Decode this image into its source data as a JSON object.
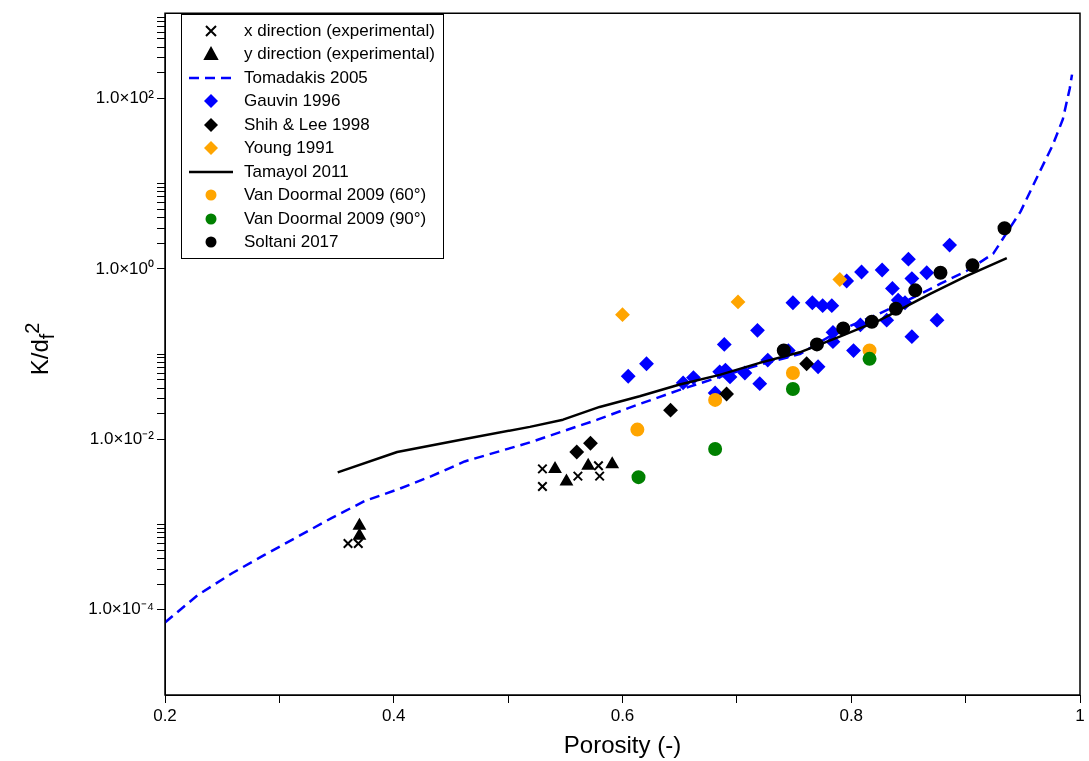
{
  "chart_data": {
    "type": "scatter",
    "xlabel": "Porosity (-)",
    "ylabel": "K/d$_{f}$$^{2}$",
    "log": "y",
    "grid": false,
    "legend": "top left",
    "xlim": [
      0.2,
      1
    ],
    "ylim": [
      1e-05,
      1000
    ],
    "xticks": [
      0.2,
      {
        "value": 0.3,
        "label": null
      },
      0.4,
      {
        "value": 0.5,
        "label": null
      },
      0.6,
      {
        "value": 0.7,
        "label": null
      },
      0.8,
      {
        "value": 0.9,
        "label": null
      },
      1
    ],
    "yticks": [
      {
        "value": 0.0001,
        "label": "1.0×10⁻⁴"
      },
      {
        "value": 0.0002,
        "label": null
      },
      {
        "value": 0.0003,
        "label": null
      },
      {
        "value": 0.0004,
        "label": null
      },
      {
        "value": 0.0005,
        "label": null
      },
      {
        "value": 0.0006,
        "label": null
      },
      {
        "value": 0.0007,
        "label": null
      },
      {
        "value": 0.0008,
        "label": null
      },
      {
        "value": 0.0009,
        "label": null
      },
      {
        "value": 0.001,
        "label": null
      },
      {
        "value": 0.01,
        "label": "1.0×10⁻²"
      },
      {
        "value": 0.02,
        "label": null
      },
      {
        "value": 0.03,
        "label": null
      },
      {
        "value": 0.04,
        "label": null
      },
      {
        "value": 0.05,
        "label": null
      },
      {
        "value": 0.06,
        "label": null
      },
      {
        "value": 0.07,
        "label": null
      },
      {
        "value": 0.08,
        "label": null
      },
      {
        "value": 0.09,
        "label": null
      },
      {
        "value": 0.1,
        "label": null
      },
      {
        "value": 1,
        "label": "1.0×10⁰"
      },
      {
        "value": 2,
        "label": null
      },
      {
        "value": 3,
        "label": null
      },
      {
        "value": 4,
        "label": null
      },
      {
        "value": 5,
        "label": null
      },
      {
        "value": 6,
        "label": null
      },
      {
        "value": 7,
        "label": null
      },
      {
        "value": 8,
        "label": null
      },
      {
        "value": 9,
        "label": null
      },
      {
        "value": 10,
        "label": null
      },
      {
        "value": 100,
        "label": "1.0×10²"
      },
      {
        "value": 200,
        "label": null
      },
      {
        "value": 300,
        "label": null
      },
      {
        "value": 400,
        "label": null
      },
      {
        "value": 500,
        "label": null
      },
      {
        "value": 600,
        "label": null
      },
      {
        "value": 700,
        "label": null
      },
      {
        "value": 800,
        "label": null
      },
      {
        "value": 900,
        "label": null
      }
    ],
    "series": [
      {
        "name": "x direction (experimental)",
        "type": "scatter",
        "color": "#000000",
        "marker": "cross",
        "x": [
          0.36,
          0.369,
          0.53,
          0.53,
          0.561,
          0.58,
          0.579
        ],
        "values": [
          0.0006,
          0.0006,
          0.0045,
          0.0028,
          0.0037,
          0.0037,
          0.0049
        ]
      },
      {
        "name": "y direction (experimental)",
        "type": "scatter",
        "color": "#000000",
        "marker": "triangle",
        "x": [
          0.37,
          0.37,
          0.541,
          0.551,
          0.57,
          0.591
        ],
        "values": [
          0.00097,
          0.00074,
          0.0045,
          0.0032,
          0.0049,
          0.0051
        ]
      },
      {
        "name": "Tomadakis 2005",
        "type": "line",
        "color": "#0000ff",
        "line_style": "dashed",
        "marker": "none",
        "x": [
          0.2,
          0.229,
          0.259,
          0.287,
          0.316,
          0.346,
          0.375,
          0.404,
          0.433,
          0.462,
          0.519,
          0.578,
          0.615,
          0.65,
          0.685,
          0.72,
          0.755,
          0.79,
          0.825,
          0.854,
          0.878,
          0.901,
          0.924,
          0.948,
          0.965,
          0.976,
          0.985,
          0.991,
          0.993
        ],
        "values": [
          7.1e-05,
          0.00015,
          0.00027,
          0.00044,
          0.00072,
          0.0012,
          0.0019,
          0.0026,
          0.0037,
          0.0055,
          0.0092,
          0.017,
          0.026,
          0.038,
          0.054,
          0.075,
          0.1,
          0.19,
          0.3,
          0.46,
          0.67,
          0.95,
          1.5,
          4.7,
          14,
          28,
          57,
          130,
          190
        ]
      },
      {
        "name": "Gauvin 1996",
        "type": "scatter",
        "color": "#0000ff",
        "marker": "diamond",
        "x": [
          0.605,
          0.621,
          0.653,
          0.662,
          0.681,
          0.685,
          0.69,
          0.694,
          0.689,
          0.707,
          0.72,
          0.718,
          0.727,
          0.745,
          0.749,
          0.766,
          0.771,
          0.775,
          0.783,
          0.784,
          0.784,
          0.796,
          0.802,
          0.808,
          0.809,
          0.827,
          0.831,
          0.836,
          0.841,
          0.847,
          0.85,
          0.853,
          0.853,
          0.866,
          0.875,
          0.886
        ],
        "values": [
          0.055,
          0.077,
          0.046,
          0.053,
          0.035,
          0.062,
          0.065,
          0.054,
          0.13,
          0.06,
          0.045,
          0.19,
          0.085,
          0.11,
          0.4,
          0.4,
          0.071,
          0.37,
          0.37,
          0.14,
          0.18,
          0.72,
          0.11,
          0.22,
          0.92,
          0.97,
          0.25,
          0.59,
          0.43,
          0.4,
          1.3,
          0.77,
          0.16,
          0.9,
          0.25,
          1.9
        ]
      },
      {
        "name": "Shih & Lee 1998",
        "type": "scatter",
        "color": "#000000",
        "marker": "diamond",
        "x": [
          0.56,
          0.572,
          0.642,
          0.691,
          0.761
        ],
        "values": [
          0.0071,
          0.009,
          0.022,
          0.034,
          0.077
        ]
      },
      {
        "name": "Young 1991",
        "type": "scatter",
        "color": "#ffa500",
        "marker": "diamond",
        "x": [
          0.6,
          0.701,
          0.79
        ],
        "values": [
          0.29,
          0.41,
          0.75
        ]
      },
      {
        "name": "Tamayol 2011",
        "type": "line",
        "color": "#000000",
        "line_style": "solid",
        "marker": "none",
        "x": [
          0.351,
          0.403,
          0.461,
          0.519,
          0.548,
          0.58,
          0.615,
          0.65,
          0.685,
          0.72,
          0.755,
          0.79,
          0.825,
          0.869,
          0.901,
          0.936
        ],
        "values": [
          0.0041,
          0.0071,
          0.01,
          0.014,
          0.017,
          0.024,
          0.032,
          0.044,
          0.057,
          0.079,
          0.105,
          0.16,
          0.25,
          0.51,
          0.83,
          1.34
        ]
      },
      {
        "name": "Van Doormal 2009 (60°)",
        "type": "scatter",
        "color": "#ffa500",
        "marker": "circle",
        "x": [
          0.613,
          0.681,
          0.749,
          0.816
        ],
        "values": [
          0.013,
          0.029,
          0.06,
          0.11
        ]
      },
      {
        "name": "Van Doormal 2009 (90°)",
        "type": "scatter",
        "color": "#008000",
        "marker": "circle",
        "x": [
          0.614,
          0.681,
          0.749,
          0.816
        ],
        "values": [
          0.0036,
          0.0077,
          0.039,
          0.088
        ]
      },
      {
        "name": "Soltani 2017",
        "type": "scatter",
        "color": "#000000",
        "marker": "circle",
        "x": [
          0.741,
          0.77,
          0.793,
          0.818,
          0.839,
          0.856,
          0.878,
          0.906,
          0.934
        ],
        "values": [
          0.11,
          0.13,
          0.2,
          0.24,
          0.34,
          0.56,
          0.9,
          1.1,
          3
        ]
      }
    ]
  }
}
